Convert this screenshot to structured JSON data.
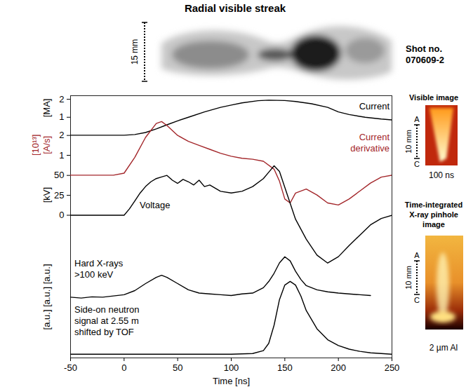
{
  "streak": {
    "title": "Radial visible streak",
    "scale_label": "15 mm"
  },
  "shot": "Shot no. 070609-2",
  "visible_image": {
    "title": "Visible image",
    "scale_label": "10 mm",
    "scale_ends": [
      "A",
      "C"
    ],
    "caption": "100 ns"
  },
  "xray_image": {
    "title": "Time-integrated X-ray pinhole image",
    "scale_label": "10 mm",
    "scale_ends": [
      "A",
      "C"
    ],
    "caption": "2 µm Al"
  },
  "chart_data": [
    {
      "type": "line",
      "ylabel": "[MA]",
      "x": [
        -50,
        -25,
        0,
        10,
        20,
        30,
        40,
        50,
        60,
        75,
        90,
        100,
        110,
        125,
        135,
        150,
        160,
        175,
        190,
        200,
        210,
        225,
        240,
        250
      ],
      "series": [
        {
          "name": "Current",
          "color": "#000000",
          "values": [
            0,
            0,
            0,
            0.04,
            0.15,
            0.35,
            0.58,
            0.8,
            1.0,
            1.3,
            1.55,
            1.68,
            1.8,
            1.92,
            1.95,
            1.93,
            1.88,
            1.75,
            1.55,
            1.3,
            1.15,
            1.0,
            0.9,
            0.85
          ]
        }
      ],
      "xlim": [
        -50,
        250
      ],
      "ylim": [
        -12.4,
        2.2
      ],
      "yticks": [
        1,
        2
      ],
      "tick_labels": "y"
    },
    {
      "type": "line",
      "ylabel": [
        "[10¹³]",
        "[A/s]"
      ],
      "x": [
        -50,
        -10,
        0,
        10,
        20,
        30,
        35,
        40,
        50,
        60,
        70,
        80,
        90,
        100,
        110,
        120,
        130,
        140,
        145,
        150,
        155,
        160,
        170,
        180,
        190,
        200,
        210,
        220,
        230,
        240,
        250
      ],
      "series": [
        {
          "name": "Current derivative",
          "color": "#a3262a",
          "values": [
            0,
            0,
            0.1,
            0.9,
            1.9,
            2.6,
            2.7,
            2.5,
            2.0,
            1.7,
            1.5,
            1.3,
            1.1,
            0.95,
            0.85,
            0.8,
            0.7,
            0.3,
            -0.3,
            -1.2,
            -1.4,
            -0.9,
            -0.7,
            -1.0,
            -1.4,
            -1.5,
            -1.2,
            -0.8,
            -0.4,
            -0.1,
            0.0
          ]
        }
      ],
      "xlim": [
        -50,
        250
      ],
      "ylim": [
        -9.2,
        4
      ],
      "yticks": [
        1,
        2
      ],
      "tick_labels": "y"
    },
    {
      "type": "line",
      "ylabel": "[kV]",
      "x": [
        -50,
        -10,
        0,
        5,
        10,
        15,
        20,
        25,
        30,
        35,
        40,
        45,
        50,
        55,
        60,
        65,
        70,
        75,
        80,
        85,
        90,
        100,
        110,
        120,
        130,
        135,
        140,
        145,
        150,
        155,
        160,
        170,
        180,
        190,
        200,
        210,
        220,
        230,
        240,
        250
      ],
      "series": [
        {
          "name": "Voltage",
          "color": "#000000",
          "values": [
            0,
            0,
            0,
            8,
            18,
            28,
            36,
            42,
            46,
            48,
            50,
            44,
            40,
            45,
            42,
            38,
            44,
            36,
            38,
            34,
            30,
            28,
            30,
            36,
            46,
            54,
            62,
            55,
            35,
            15,
            -5,
            -30,
            -50,
            -60,
            -52,
            -38,
            -25,
            -12,
            -4,
            0
          ]
        }
      ],
      "xlim": [
        -50,
        250
      ],
      "ylim": [
        -179,
        150
      ],
      "yticks": [
        0,
        25,
        50
      ],
      "tick_labels": "y"
    },
    {
      "type": "line",
      "ylabel": "[a.u.] [a.u.] [a.u.]",
      "x": [
        -50,
        -40,
        -30,
        -20,
        -10,
        0,
        10,
        20,
        30,
        35,
        40,
        50,
        60,
        70,
        80,
        90,
        100,
        110,
        120,
        130,
        135,
        140,
        145,
        150,
        155,
        160,
        165,
        170,
        180,
        190,
        200,
        210,
        220,
        230
      ],
      "series": [
        {
          "name": "Hard X-rays >100 keV",
          "color": "#000000",
          "values": [
            0.02,
            0,
            0.03,
            0.02,
            0.05,
            0.08,
            0.18,
            0.35,
            0.5,
            0.55,
            0.5,
            0.35,
            0.2,
            0.12,
            0.1,
            0.08,
            0.06,
            0.1,
            0.12,
            0.25,
            0.4,
            0.6,
            0.85,
            1.0,
            0.9,
            0.65,
            0.45,
            0.3,
            0.2,
            0.15,
            0.12,
            0.1,
            0.08,
            0.06
          ]
        }
      ],
      "xlim": [
        -50,
        250
      ],
      "ylim": [
        -1.45,
        4.9
      ],
      "tick_labels": false
    },
    {
      "type": "line",
      "xlabel": "Time [ns]",
      "x": [
        -50,
        0,
        50,
        100,
        120,
        130,
        135,
        140,
        145,
        150,
        155,
        160,
        165,
        170,
        180,
        190,
        200,
        210,
        220,
        230,
        240,
        250
      ],
      "series": [
        {
          "name": "Side-on neutron signal at 2.55 m shifted by TOF",
          "color": "#000000",
          "values": [
            0,
            0,
            0,
            0,
            0.01,
            0.05,
            0.15,
            0.4,
            0.75,
            0.95,
            1.0,
            0.95,
            0.8,
            0.6,
            0.35,
            0.2,
            0.12,
            0.07,
            0.04,
            0.02,
            0.01,
            0
          ]
        }
      ],
      "xlim": [
        -50,
        250
      ],
      "ylim": [
        -0.05,
        3.55
      ],
      "xticks": [
        -50,
        0,
        50,
        100,
        150,
        200,
        250
      ],
      "tick_labels": "x"
    }
  ]
}
